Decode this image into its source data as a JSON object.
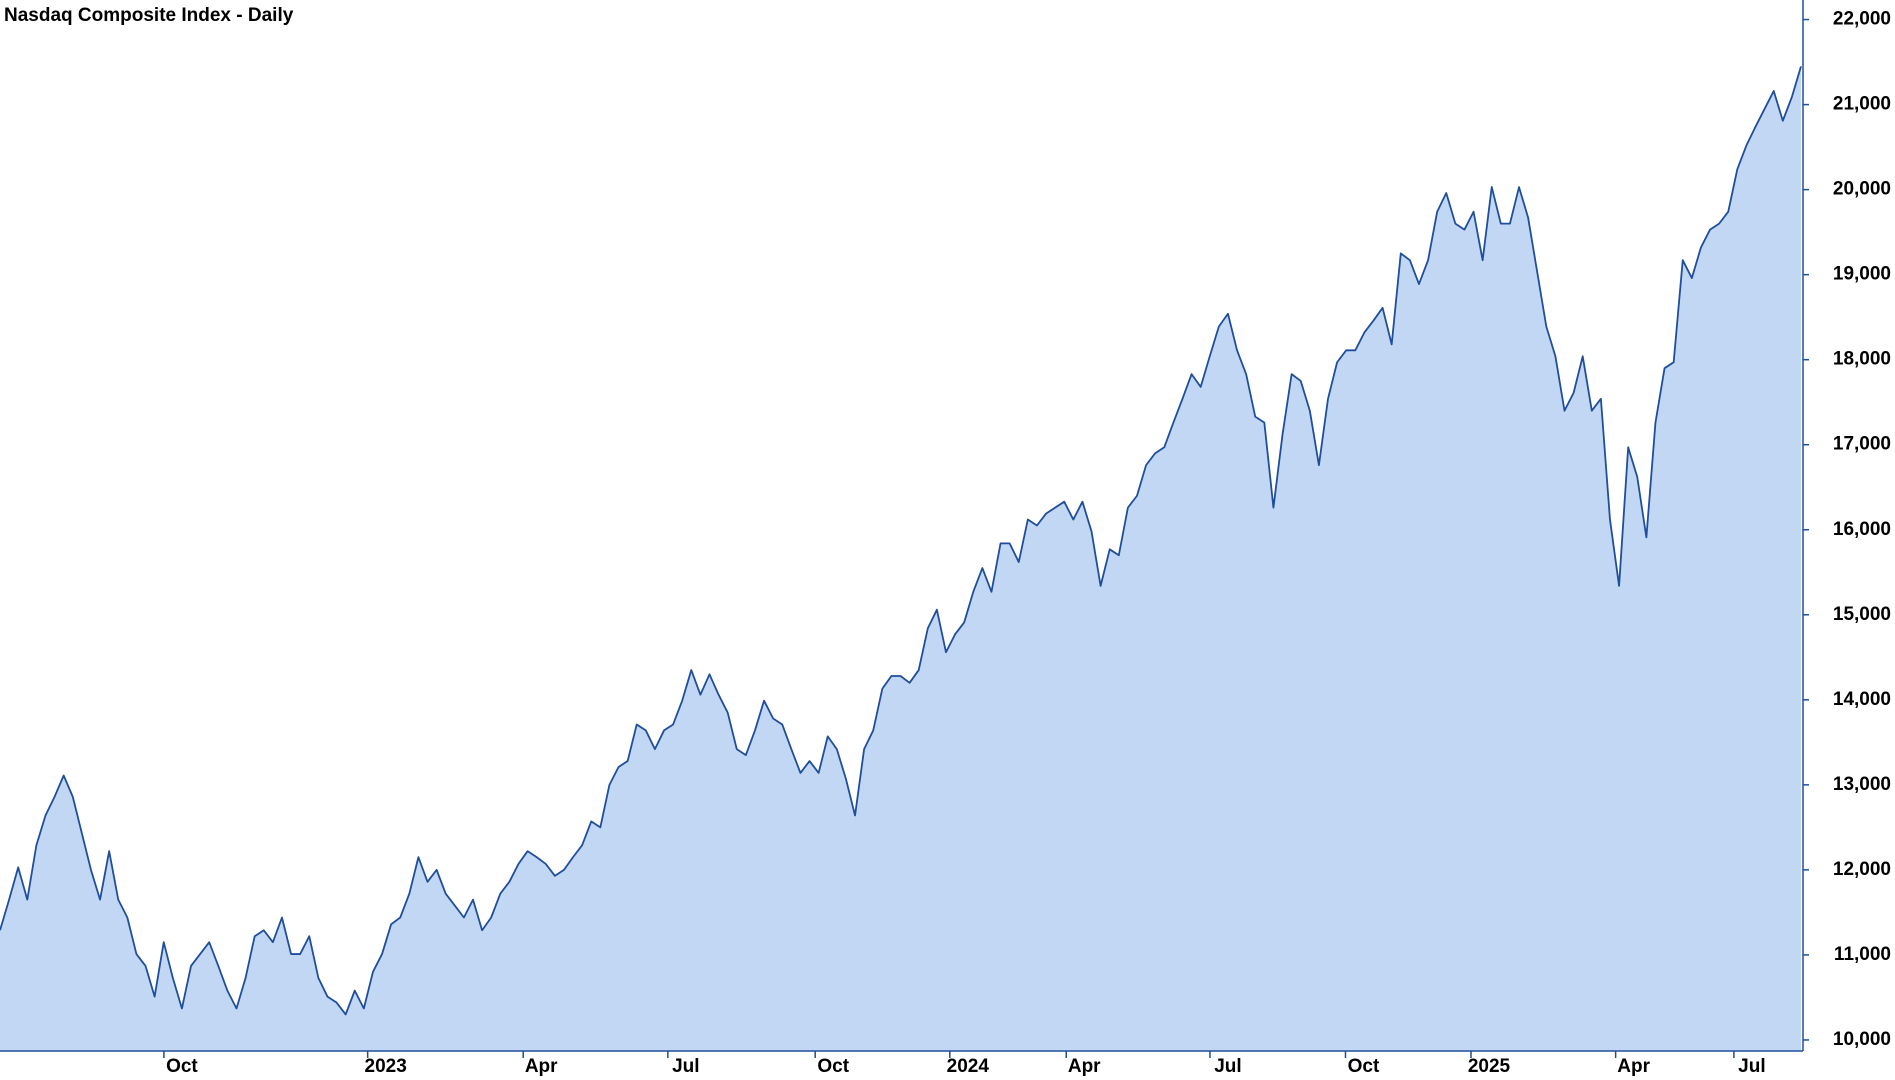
{
  "chart_data": {
    "type": "area",
    "title": "Nasdaq Composite Index - Daily",
    "color": "#1f4e9c",
    "fill": "#c2d7f4",
    "values": [
      11290,
      11650,
      12030,
      11650,
      12290,
      12640,
      12860,
      13110,
      12860,
      12430,
      12000,
      11650,
      12220,
      11650,
      11440,
      11010,
      10870,
      10510,
      11150,
      10730,
      10370,
      10870,
      11010,
      11150,
      10870,
      10580,
      10370,
      10730,
      11220,
      11290,
      11150,
      11440,
      11010,
      11010,
      11220,
      10730,
      10510,
      10440,
      10300,
      10580,
      10370,
      10800,
      11010,
      11360,
      11440,
      11720,
      12150,
      11860,
      12000,
      11720,
      11580,
      11440,
      11650,
      11290,
      11440,
      11720,
      11860,
      12070,
      12220,
      12150,
      12070,
      11930,
      12000,
      12150,
      12290,
      12570,
      12500,
      13000,
      13210,
      13280,
      13710,
      13640,
      13420,
      13640,
      13710,
      13990,
      14350,
      14060,
      14300,
      14060,
      13850,
      13420,
      13350,
      13640,
      13990,
      13780,
      13710,
      13420,
      13140,
      13280,
      13140,
      13570,
      13420,
      13070,
      12640,
      13420,
      13640,
      14130,
      14280,
      14280,
      14200,
      14350,
      14840,
      15060,
      14560,
      14770,
      14910,
      15270,
      15550,
      15270,
      15840,
      15840,
      15620,
      16120,
      16050,
      16190,
      16260,
      16330,
      16120,
      16330,
      15980,
      15340,
      15770,
      15700,
      16260,
      16400,
      16760,
      16900,
      16970,
      17260,
      17540,
      17830,
      17680,
      18040,
      18390,
      18540,
      18110,
      17830,
      17330,
      17260,
      16260,
      17120,
      17830,
      17750,
      17400,
      16760,
      17540,
      17970,
      18110,
      18110,
      18320,
      18460,
      18610,
      18180,
      19250,
      19170,
      18890,
      19170,
      19740,
      19960,
      19600,
      19530,
      19740,
      19170,
      20030,
      19600,
      19600,
      20030,
      19670,
      19030,
      18390,
      18040,
      17400,
      17610,
      18040,
      17400,
      17540,
      16120,
      15340,
      16970,
      16620,
      15910,
      17260,
      17900,
      17970,
      19170,
      18960,
      19320,
      19530,
      19600,
      19740,
      20240,
      20520,
      20740,
      20950,
      21160,
      20810,
      21090,
      21450
    ],
    "xlim": [
      0,
      198
    ],
    "xticks": [
      {
        "value": 20,
        "label": "Oct"
      },
      {
        "value": 42.4,
        "label": "2023"
      },
      {
        "value": 59.5,
        "label": "Apr"
      },
      {
        "value": 75.4,
        "label": "Jul"
      },
      {
        "value": 91.6,
        "label": "Oct"
      },
      {
        "value": 106.4,
        "label": "2024"
      },
      {
        "value": 119.2,
        "label": "Apr"
      },
      {
        "value": 135,
        "label": "Jul"
      },
      {
        "value": 149.9,
        "label": "Oct"
      },
      {
        "value": 163.7,
        "label": "2025"
      },
      {
        "value": 179.6,
        "label": "Apr"
      },
      {
        "value": 192.6,
        "label": "Jul"
      }
    ],
    "ylim": [
      9870,
      22230
    ],
    "yticks": [
      {
        "value": 10000,
        "label": "10,000"
      },
      {
        "value": 11000,
        "label": "11,000"
      },
      {
        "value": 12000,
        "label": "12,000"
      },
      {
        "value": 13000,
        "label": "13,000"
      },
      {
        "value": 14000,
        "label": "14,000"
      },
      {
        "value": 15000,
        "label": "15,000"
      },
      {
        "value": 16000,
        "label": "16,000"
      },
      {
        "value": 17000,
        "label": "17,000"
      },
      {
        "value": 18000,
        "label": "18,000"
      },
      {
        "value": 19000,
        "label": "19,000"
      },
      {
        "value": 20000,
        "label": "20,000"
      },
      {
        "value": 21000,
        "label": "21,000"
      },
      {
        "value": 22000,
        "label": "22,000"
      }
    ]
  }
}
